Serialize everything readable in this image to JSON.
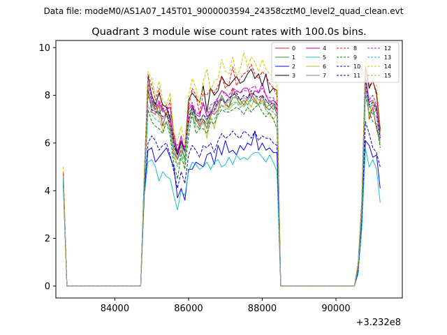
{
  "chart_data": {
    "type": "line",
    "suptitle": "Data file: modeM0/AS1A07_145T01_9000003594_24358cztM0_level2_quad_clean.evt",
    "title": "Quadrant 3 module wise count rates with 100.0s bins.",
    "xlabel": "",
    "ylabel": "",
    "x_offset_label": "+3.232e8",
    "xlim": [
      82400,
      91800
    ],
    "ylim": [
      -0.5,
      10.3
    ],
    "x_ticks": [
      84000,
      86000,
      88000,
      90000
    ],
    "y_ticks": [
      0,
      2,
      4,
      6,
      8,
      10
    ],
    "grid": false,
    "legend_position": "top-right",
    "legend_columns": 4,
    "x": [
      82600,
      82700,
      84700,
      84800,
      84900,
      85000,
      85100,
      85200,
      85300,
      85400,
      85500,
      85600,
      85700,
      85800,
      85900,
      86000,
      86100,
      86200,
      86300,
      86400,
      86500,
      86600,
      86700,
      86800,
      86900,
      87000,
      87100,
      87200,
      87300,
      87400,
      87500,
      87600,
      87700,
      87800,
      87900,
      88000,
      88100,
      88200,
      88300,
      88400,
      88500,
      88600,
      90500,
      90600,
      90700,
      90800,
      90900,
      91000,
      91100,
      91200
    ],
    "series": [
      {
        "name": "0",
        "color": "#d62728",
        "dash": false,
        "values": [
          4.7,
          0.0,
          0.0,
          4.5,
          8.5,
          7.3,
          7.2,
          7.6,
          6.7,
          7.3,
          6.6,
          5.6,
          5.3,
          5.7,
          5.4,
          6.8,
          7.6,
          7.0,
          6.7,
          7.0,
          6.6,
          7.3,
          7.2,
          7.4,
          7.9,
          7.6,
          7.5,
          8.3,
          7.9,
          7.8,
          7.6,
          7.9,
          8.1,
          7.8,
          7.6,
          8.0,
          7.5,
          7.4,
          7.6,
          7.2,
          0.0,
          0.0,
          0.0,
          0.7,
          3.2,
          8.6,
          7.0,
          7.5,
          6.6,
          6.0
        ]
      },
      {
        "name": "1",
        "color": "#2ca02c",
        "dash": false,
        "values": [
          4.5,
          0.0,
          0.0,
          4.3,
          8.0,
          7.6,
          7.7,
          7.2,
          7.5,
          7.1,
          7.2,
          5.8,
          5.7,
          5.9,
          5.3,
          7.3,
          7.4,
          6.9,
          7.0,
          7.0,
          6.8,
          7.1,
          7.7,
          7.6,
          8.0,
          7.7,
          7.5,
          7.9,
          7.9,
          7.6,
          7.8,
          7.6,
          7.9,
          7.7,
          7.6,
          7.8,
          7.5,
          7.6,
          7.4,
          7.7,
          0.0,
          0.0,
          0.0,
          0.8,
          3.3,
          8.3,
          7.6,
          7.2,
          7.4,
          6.4
        ]
      },
      {
        "name": "2",
        "color": "#0000ff",
        "dash": false,
        "values": [
          4.3,
          0.0,
          0.0,
          4.0,
          5.7,
          5.8,
          5.2,
          5.4,
          5.6,
          5.8,
          5.4,
          5.0,
          3.7,
          4.1,
          3.6,
          4.9,
          4.9,
          5.2,
          5.1,
          5.0,
          5.5,
          5.6,
          5.1,
          5.9,
          5.5,
          6.1,
          5.6,
          5.7,
          5.5,
          5.9,
          5.7,
          6.0,
          5.9,
          6.5,
          5.7,
          6.0,
          5.7,
          5.8,
          5.6,
          5.6,
          0.0,
          0.0,
          0.0,
          0.6,
          2.6,
          6.1,
          5.9,
          5.4,
          5.5,
          4.1
        ]
      },
      {
        "name": "3",
        "color": "#000000",
        "dash": false,
        "values": [
          4.7,
          0.0,
          0.0,
          4.7,
          8.8,
          8.0,
          7.6,
          8.1,
          7.6,
          7.5,
          7.0,
          6.1,
          5.5,
          6.1,
          5.6,
          7.8,
          8.1,
          7.9,
          7.7,
          8.4,
          7.3,
          8.3,
          8.0,
          8.2,
          8.8,
          8.5,
          8.4,
          8.6,
          8.8,
          8.5,
          8.6,
          8.9,
          9.1,
          8.7,
          8.9,
          8.4,
          8.9,
          8.1,
          8.3,
          8.2,
          0.0,
          0.0,
          0.0,
          0.9,
          3.6,
          9.2,
          8.3,
          8.6,
          8.1,
          6.6
        ]
      },
      {
        "name": "4",
        "color": "#bf00bf",
        "dash": false,
        "values": [
          4.6,
          0.0,
          0.0,
          4.4,
          8.2,
          7.8,
          7.4,
          7.7,
          7.3,
          7.4,
          7.5,
          6.4,
          5.6,
          6.3,
          5.6,
          7.4,
          7.6,
          7.2,
          7.1,
          7.7,
          7.1,
          7.2,
          7.6,
          7.9,
          8.2,
          8.1,
          7.9,
          8.0,
          8.2,
          8.1,
          8.3,
          8.3,
          7.9,
          8.2,
          8.1,
          8.5,
          8.0,
          7.7,
          7.8,
          7.6,
          0.0,
          0.0,
          0.0,
          0.8,
          3.3,
          8.9,
          7.7,
          7.8,
          7.5,
          6.2
        ]
      },
      {
        "name": "5",
        "color": "#17becf",
        "dash": false,
        "values": [
          4.2,
          0.0,
          0.0,
          3.8,
          5.2,
          5.3,
          5.0,
          4.4,
          4.8,
          4.6,
          4.5,
          3.8,
          3.2,
          4.0,
          3.8,
          4.8,
          5.2,
          5.1,
          4.9,
          5.0,
          5.2,
          4.9,
          5.2,
          5.3,
          5.0,
          5.1,
          5.4,
          5.1,
          5.5,
          5.3,
          5.4,
          5.3,
          5.5,
          5.6,
          5.6,
          5.4,
          5.2,
          5.5,
          5.2,
          4.8,
          0.0,
          0.0,
          0.0,
          0.5,
          2.4,
          5.8,
          5.0,
          5.3,
          4.9,
          3.5
        ]
      },
      {
        "name": "6",
        "color": "#bcbd22",
        "dash": false,
        "values": [
          4.8,
          0.0,
          0.0,
          4.6,
          8.4,
          7.4,
          7.6,
          7.1,
          6.5,
          6.9,
          6.9,
          5.5,
          5.1,
          5.3,
          5.1,
          7.0,
          7.1,
          6.7,
          6.6,
          6.9,
          6.2,
          7.1,
          6.6,
          7.4,
          7.6,
          7.5,
          7.4,
          7.6,
          7.7,
          7.7,
          7.5,
          7.8,
          7.5,
          7.9,
          7.6,
          7.8,
          7.4,
          7.2,
          7.0,
          7.2,
          0.0,
          0.0,
          0.0,
          0.8,
          3.1,
          8.6,
          7.1,
          7.8,
          7.4,
          5.9
        ]
      },
      {
        "name": "7",
        "color": "#7f7f7f",
        "dash": false,
        "values": [
          4.6,
          0.0,
          0.0,
          4.3,
          8.0,
          7.7,
          7.3,
          7.2,
          7.0,
          7.3,
          6.9,
          5.8,
          5.3,
          5.9,
          5.6,
          7.2,
          7.3,
          7.1,
          6.8,
          7.2,
          6.9,
          7.4,
          7.3,
          7.7,
          7.9,
          7.7,
          7.8,
          8.1,
          8.0,
          7.8,
          7.9,
          7.8,
          8.1,
          8.0,
          7.8,
          7.9,
          7.7,
          7.8,
          7.6,
          7.4,
          0.0,
          0.0,
          0.0,
          0.8,
          3.3,
          8.5,
          7.5,
          7.6,
          7.3,
          6.1
        ]
      },
      {
        "name": "8",
        "color": "#ff0000",
        "dash": true,
        "values": [
          4.8,
          0.0,
          0.0,
          4.6,
          8.9,
          8.4,
          7.8,
          8.3,
          7.4,
          7.2,
          7.8,
          6.2,
          5.9,
          6.1,
          5.8,
          7.5,
          8.3,
          8.0,
          7.2,
          8.1,
          8.0,
          8.3,
          8.1,
          8.4,
          8.8,
          8.3,
          8.5,
          9.2,
          8.4,
          8.7,
          8.9,
          9.0,
          9.3,
          8.9,
          8.7,
          9.0,
          8.8,
          8.5,
          8.3,
          8.0,
          0.0,
          0.0,
          0.0,
          1.0,
          3.5,
          9.3,
          8.4,
          8.6,
          8.0,
          6.5
        ]
      },
      {
        "name": "9",
        "color": "#008000",
        "dash": true,
        "values": [
          4.4,
          0.0,
          0.0,
          4.1,
          7.4,
          6.9,
          6.7,
          6.6,
          6.4,
          6.9,
          6.3,
          5.1,
          4.5,
          5.5,
          4.9,
          6.3,
          7.3,
          6.4,
          6.6,
          6.6,
          6.4,
          6.9,
          6.8,
          7.2,
          7.4,
          7.3,
          7.3,
          7.4,
          7.5,
          7.4,
          7.2,
          7.5,
          7.3,
          7.5,
          7.6,
          7.3,
          7.1,
          7.3,
          7.0,
          6.6,
          0.0,
          0.0,
          0.0,
          0.7,
          3.0,
          8.0,
          7.3,
          6.9,
          6.8,
          5.8
        ]
      },
      {
        "name": "10",
        "color": "#0000cd",
        "dash": true,
        "values": [
          4.5,
          0.0,
          0.0,
          3.9,
          6.0,
          6.3,
          6.1,
          5.7,
          5.9,
          6.0,
          5.5,
          4.8,
          4.1,
          4.8,
          4.3,
          5.5,
          5.9,
          5.7,
          5.4,
          5.9,
          5.8,
          6.0,
          5.6,
          6.1,
          6.4,
          6.2,
          6.3,
          6.5,
          6.3,
          6.2,
          6.5,
          6.4,
          6.2,
          6.5,
          6.1,
          6.3,
          6.2,
          6.2,
          6.0,
          5.9,
          0.0,
          0.0,
          0.0,
          0.6,
          2.8,
          6.9,
          6.4,
          5.8,
          5.6,
          5.0
        ]
      },
      {
        "name": "11",
        "color": "#00008b",
        "dash": true,
        "values": [
          4.6,
          0.0,
          0.0,
          4.4,
          8.2,
          7.4,
          7.3,
          7.3,
          7.1,
          7.2,
          6.8,
          5.9,
          5.5,
          6.0,
          5.7,
          7.0,
          7.5,
          7.1,
          6.9,
          7.2,
          7.0,
          7.3,
          7.4,
          7.8,
          7.8,
          7.7,
          7.9,
          8.0,
          8.1,
          7.8,
          8.0,
          7.9,
          8.2,
          8.0,
          7.9,
          8.0,
          7.8,
          7.6,
          7.7,
          7.4,
          0.0,
          0.0,
          0.0,
          0.8,
          3.3,
          8.6,
          7.6,
          7.7,
          7.4,
          6.2
        ]
      },
      {
        "name": "12",
        "color": "#d000d0",
        "dash": true,
        "values": [
          4.7,
          0.0,
          0.0,
          4.5,
          8.5,
          7.9,
          7.5,
          7.8,
          7.4,
          7.6,
          7.1,
          6.1,
          5.7,
          6.1,
          5.8,
          7.5,
          7.7,
          7.3,
          7.2,
          7.6,
          7.1,
          7.6,
          7.7,
          7.9,
          8.2,
          8.0,
          8.0,
          8.3,
          8.2,
          8.1,
          8.2,
          8.2,
          8.3,
          8.4,
          8.1,
          8.3,
          8.0,
          7.9,
          7.9,
          7.6,
          0.0,
          0.0,
          0.0,
          0.9,
          3.4,
          8.8,
          7.8,
          8.0,
          7.6,
          6.3
        ]
      },
      {
        "name": "13",
        "color": "#20b2aa",
        "dash": true,
        "values": [
          4.5,
          0.0,
          0.0,
          4.2,
          7.6,
          7.2,
          7.0,
          6.9,
          6.7,
          6.9,
          6.5,
          5.4,
          5.0,
          5.6,
          5.2,
          6.7,
          7.1,
          6.8,
          6.6,
          6.9,
          6.6,
          7.0,
          7.0,
          7.3,
          7.6,
          7.4,
          7.5,
          7.7,
          7.7,
          7.5,
          7.6,
          7.6,
          7.8,
          7.7,
          7.6,
          7.7,
          7.4,
          7.4,
          7.3,
          7.1,
          0.0,
          0.0,
          0.0,
          0.7,
          3.1,
          8.2,
          7.3,
          7.3,
          7.1,
          5.9
        ]
      },
      {
        "name": "14",
        "color": "#c8c800",
        "dash": true,
        "values": [
          5.0,
          0.0,
          0.0,
          4.8,
          9.0,
          8.7,
          8.0,
          8.6,
          7.8,
          7.6,
          8.1,
          6.4,
          6.1,
          6.7,
          6.0,
          8.0,
          8.7,
          8.3,
          7.6,
          8.6,
          9.1,
          8.2,
          8.6,
          8.7,
          9.5,
          9.0,
          8.9,
          9.6,
          8.8,
          9.1,
          9.8,
          9.2,
          9.6,
          9.4,
          9.0,
          9.5,
          9.1,
          8.9,
          8.8,
          8.4,
          0.0,
          0.0,
          0.0,
          1.0,
          3.7,
          9.7,
          8.6,
          9.0,
          8.4,
          6.7
        ]
      },
      {
        "name": "15",
        "color": "#a0a0a0",
        "dash": true,
        "values": [
          4.6,
          0.0,
          0.0,
          4.4,
          8.1,
          7.6,
          7.3,
          7.4,
          7.0,
          7.3,
          6.9,
          5.8,
          5.4,
          5.9,
          5.6,
          7.2,
          7.4,
          7.1,
          6.9,
          7.2,
          6.9,
          7.3,
          7.3,
          7.6,
          7.9,
          7.7,
          7.7,
          8.0,
          7.9,
          7.8,
          7.9,
          7.8,
          8.0,
          8.0,
          7.8,
          7.9,
          7.6,
          7.6,
          7.6,
          7.3,
          0.0,
          0.0,
          0.0,
          0.8,
          3.3,
          8.5,
          7.5,
          7.6,
          7.3,
          6.1
        ]
      }
    ]
  }
}
